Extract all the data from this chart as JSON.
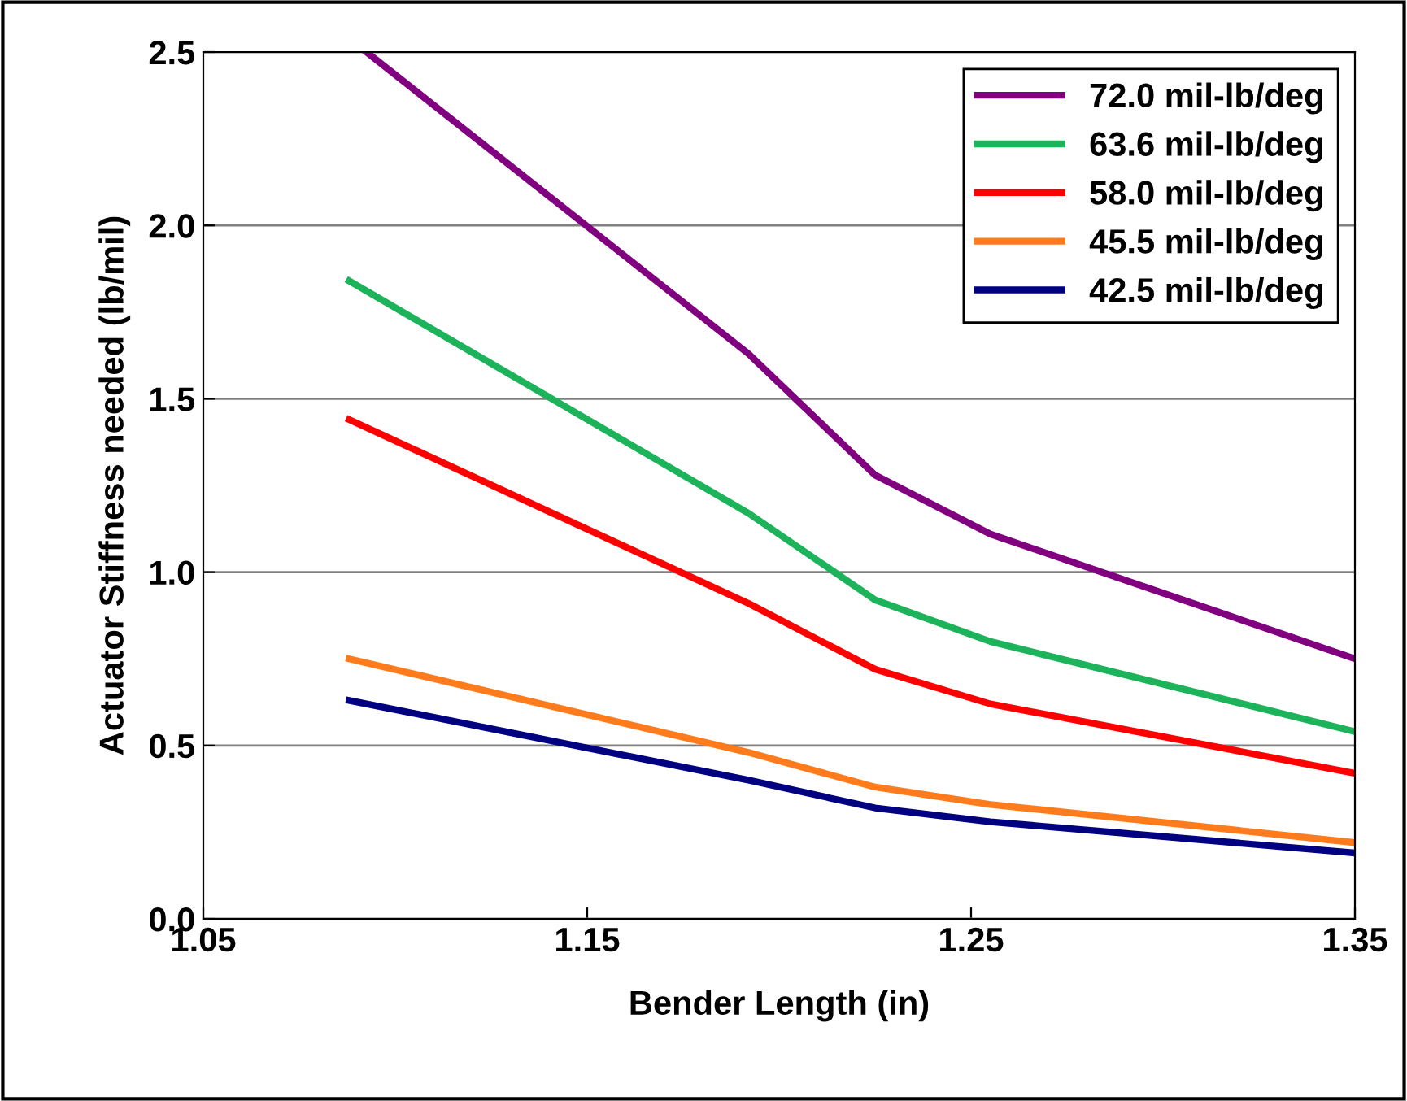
{
  "chart_data": {
    "type": "line",
    "xlabel": "Bender Length (in)",
    "ylabel": "Actuator Stiffness needed (lb/mil)",
    "x": [
      1.088,
      1.192,
      1.225,
      1.255,
      1.35
    ],
    "series": [
      {
        "name": "72.0 mil-lb/deg",
        "color": "#800080",
        "x": [
          1.0925,
          1.192,
          1.225,
          1.255,
          1.35
        ],
        "values": [
          2.5,
          1.63,
          1.28,
          1.11,
          0.75
        ]
      },
      {
        "name": "63.6 mil-lb/deg",
        "color": "#1db35a",
        "values": [
          1.84,
          1.17,
          0.92,
          0.8,
          0.54
        ]
      },
      {
        "name": "58.0 mil-lb/deg",
        "color": "#ff0000",
        "values": [
          1.44,
          0.91,
          0.72,
          0.62,
          0.42
        ]
      },
      {
        "name": "45.5 mil-lb/deg",
        "color": "#ff7b1c",
        "values": [
          0.75,
          0.48,
          0.38,
          0.33,
          0.22
        ]
      },
      {
        "name": "42.5 mil-lb/deg",
        "color": "#000080",
        "values": [
          0.63,
          0.4,
          0.32,
          0.28,
          0.19
        ]
      }
    ],
    "xlim": [
      1.05,
      1.35
    ],
    "xticks": [
      {
        "value": 1.05,
        "label": "1.05"
      },
      {
        "value": 1.15,
        "label": "1.15"
      },
      {
        "value": 1.25,
        "label": "1.25"
      },
      {
        "value": 1.35,
        "label": "1.35"
      }
    ],
    "ylim": [
      0,
      2.5
    ],
    "yticks": [
      {
        "value": 0,
        "label": "0.0"
      },
      {
        "value": 0.5,
        "label": "0.5"
      },
      {
        "value": 1.0,
        "label": "1.0"
      },
      {
        "value": 1.5,
        "label": "1.5"
      },
      {
        "value": 2.0,
        "label": "2.0"
      },
      {
        "value": 2.5,
        "label": "2.5"
      }
    ],
    "grid": "y",
    "legend": "top right",
    "marker": "none",
    "line_style": "solid"
  }
}
